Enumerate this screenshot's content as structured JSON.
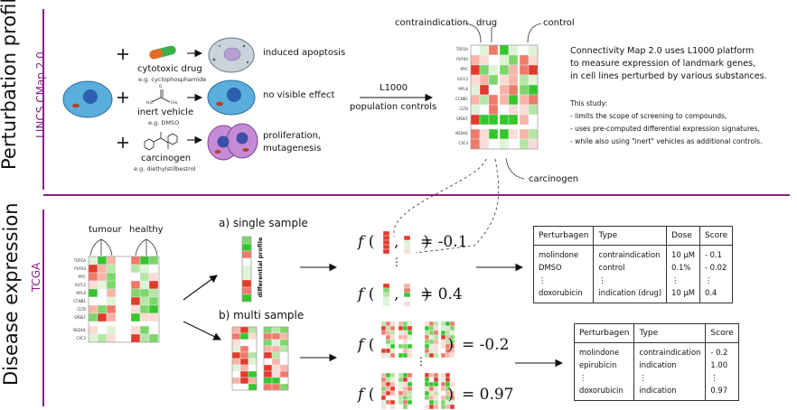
{
  "top_section": {
    "title": "Perturbation profiles",
    "subtitle": "LINCS CMap 2.0",
    "agents": [
      {
        "name": "cytotoxic drug",
        "example": "e.g. cyclophosphamide",
        "effect": "induced apoptosis"
      },
      {
        "name": "inert vehicle",
        "example": "e.g. DMSO",
        "effect": "no visible effect"
      },
      {
        "name": "carcinogen",
        "example": "e.g. diethylstilbestrol",
        "effect_line1": "proliferation,",
        "effect_line2": "mutagenesis"
      }
    ],
    "platform": "L1000",
    "platform_sub": "population controls",
    "heatmap_labels": {
      "contraindication": "contraindication",
      "drug": "drug",
      "control": "control",
      "carcinogen": "carcinogen"
    },
    "description": [
      "Connectivity Map 2.0 uses L1000 platform",
      "to measure expression of landmark genes,",
      "in cell lines perturbed by various substances."
    ],
    "study_title": "This study:",
    "study_points": [
      "- limits the scope of screening to compounds,",
      "- uses pre-computed differential expression signatures,",
      "- while also using \"inert\" vehicles as additional controls."
    ]
  },
  "bottom_section": {
    "title": "Disease expression",
    "subtitle": "TCGA",
    "tumour_label": "tumour",
    "healthy_label": "healthy",
    "single_label": "a) single sample",
    "multi_label": "b) multi sample",
    "differential_label": "differential profile",
    "genes": [
      "TOP2A",
      "PUF60",
      "MYC",
      "IGFC2",
      "MYL6",
      "CCNB1",
      "CLTB",
      "SPDEF",
      "NSDHL",
      "CXC3"
    ],
    "formula_prefix": "f",
    "single_results": [
      "= -0.1",
      "= 0.4"
    ],
    "multi_results": [
      "= -0.2",
      "= 0.97"
    ],
    "table_single": {
      "headers": [
        "Perturbagen",
        "Type",
        "Dose",
        "Score"
      ],
      "rows": [
        [
          "molindone",
          "contraindication",
          "10 μM",
          "- 0.1"
        ],
        [
          "DMSO",
          "control",
          "0.1%",
          "- 0.02"
        ],
        [
          "⋮",
          "⋮",
          "⋮",
          "⋮"
        ],
        [
          "doxorubicin",
          "indication (drug)",
          "10 μM",
          "0.4"
        ]
      ]
    },
    "table_multi": {
      "headers": [
        "Perturbagen",
        "Type",
        "Score"
      ],
      "rows": [
        [
          "molindone",
          "contraindication",
          "- 0.2"
        ],
        [
          "epirubicin",
          "indication",
          "1.00"
        ],
        [
          "⋮",
          "⋮",
          "⋮"
        ],
        [
          "doxorubicin",
          "indication",
          "0.97"
        ]
      ]
    }
  }
}
